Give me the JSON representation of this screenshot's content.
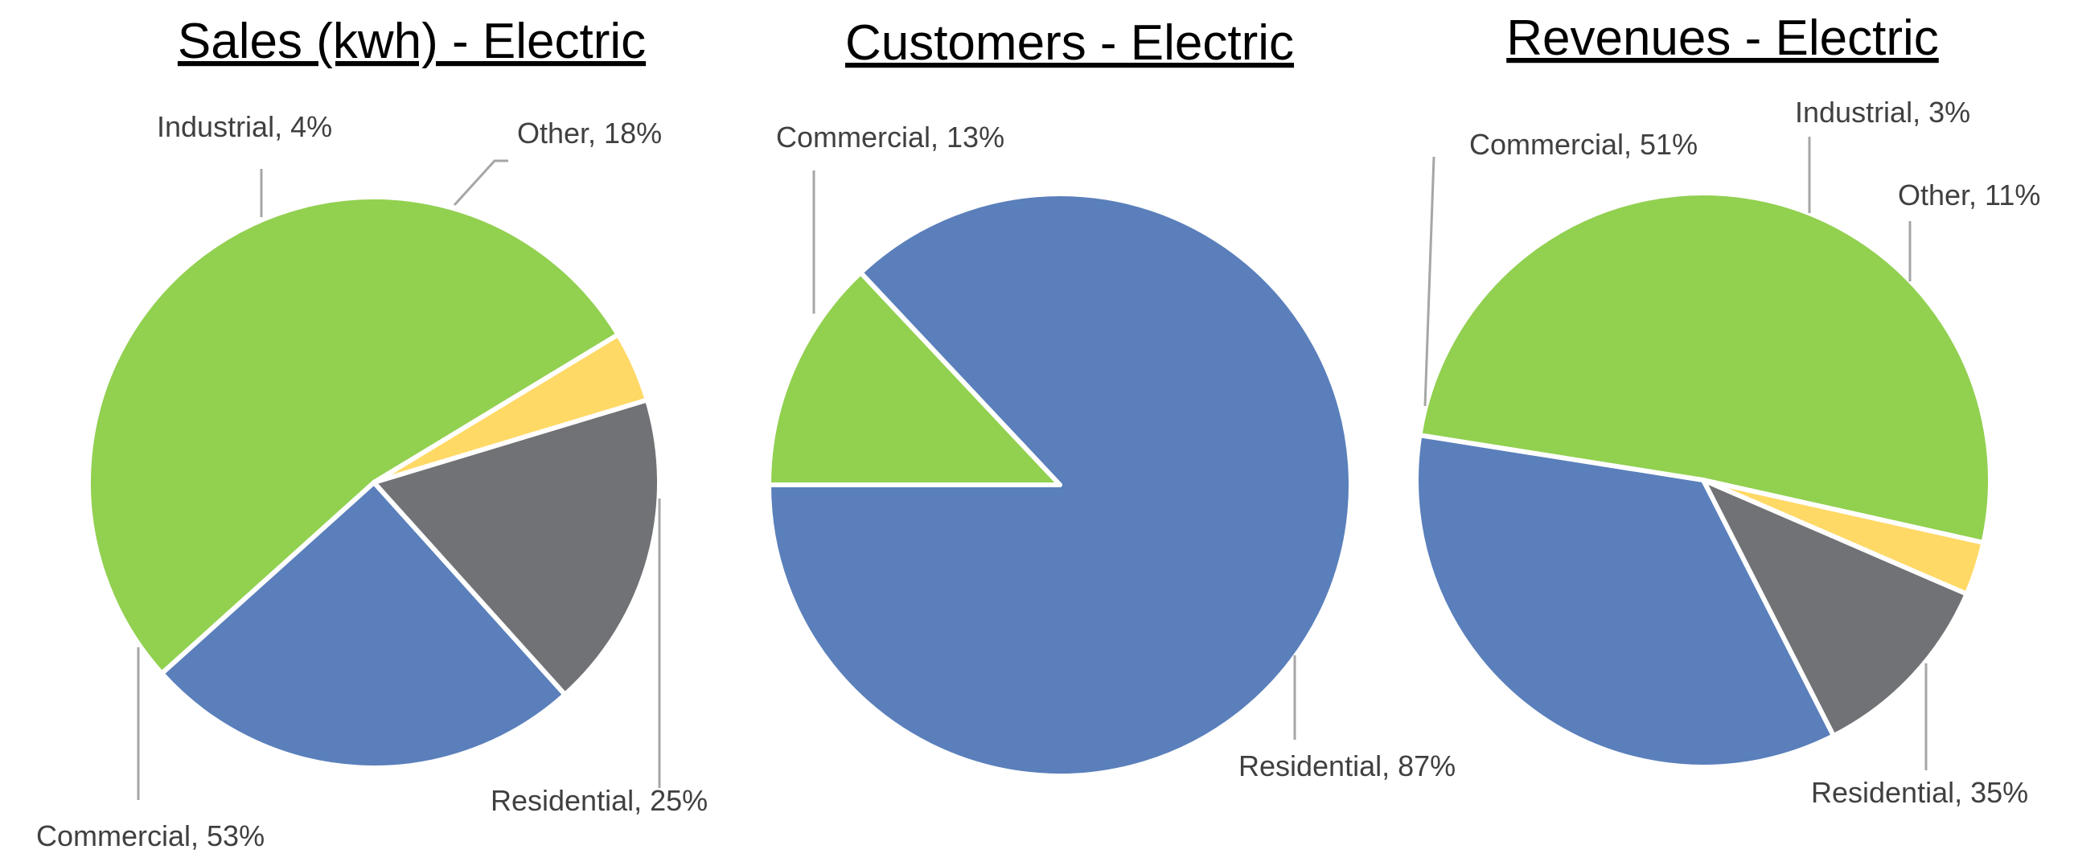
{
  "colors": {
    "Residential": "#5a7fbb",
    "Commercial": "#92d050",
    "Industrial": "#ffd966",
    "Other": "#717275"
  },
  "chart_data": [
    {
      "type": "pie",
      "title": "Sales (kwh) - Electric",
      "slices": [
        {
          "category": "Residential",
          "value": 25,
          "label": "Residential, 25%"
        },
        {
          "category": "Commercial",
          "value": 53,
          "label": "Commercial, 53%"
        },
        {
          "category": "Industrial",
          "value": 4,
          "label": "Industrial, 4%"
        },
        {
          "category": "Other",
          "value": 18,
          "label": "Other, 18%"
        }
      ]
    },
    {
      "type": "pie",
      "title": "Customers - Electric",
      "slices": [
        {
          "category": "Residential",
          "value": 87,
          "label": "Residential, 87%"
        },
        {
          "category": "Commercial",
          "value": 13,
          "label": "Commercial, 13%"
        }
      ]
    },
    {
      "type": "pie",
      "title": "Revenues - Electric",
      "slices": [
        {
          "category": "Residential",
          "value": 35,
          "label": "Residential, 35%"
        },
        {
          "category": "Commercial",
          "value": 51,
          "label": "Commercial, 51%"
        },
        {
          "category": "Industrial",
          "value": 3,
          "label": "Industrial, 3%"
        },
        {
          "category": "Other",
          "value": 11,
          "label": "Other, 11%"
        }
      ]
    }
  ]
}
